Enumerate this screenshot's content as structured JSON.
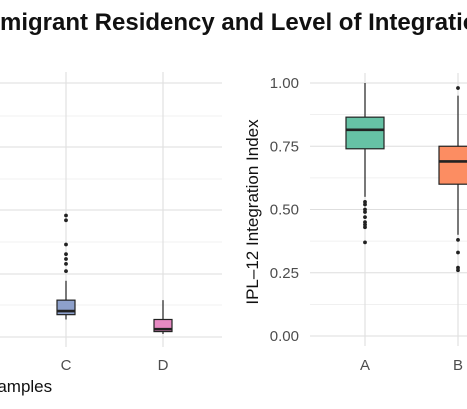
{
  "title": "Immigrant Residency and Level of Integration",
  "colors": {
    "A": "#66c2a5",
    "B": "#fc8d62",
    "C": "#8da0cb",
    "D": "#e78ac3",
    "grid": "#dedede",
    "box_line": "#222222"
  },
  "chart_data": [
    {
      "type": "box",
      "panel": "left",
      "xlabel": "Samples",
      "ylabel": "",
      "categories": [
        "C",
        "D"
      ],
      "boxes": [
        {
          "name": "C",
          "min": 0.06,
          "q1": 0.08,
          "median": 0.095,
          "q3": 0.14,
          "max": 0.22,
          "outliers": [
            0.26,
            0.29,
            0.31,
            0.33,
            0.37,
            0.47,
            0.49
          ]
        },
        {
          "name": "D",
          "min": 0.0,
          "q1": 0.01,
          "median": 0.02,
          "q3": 0.06,
          "max": 0.14,
          "outliers": []
        }
      ]
    },
    {
      "type": "box",
      "panel": "right",
      "xlabel": "",
      "ylabel": "IPL–12 Integration Index",
      "ylim": [
        0,
        1
      ],
      "yticks": [
        "0.00",
        "0.25",
        "0.50",
        "0.75",
        "1.00"
      ],
      "categories": [
        "A",
        "B"
      ],
      "boxes": [
        {
          "name": "A",
          "min": 0.55,
          "q1": 0.74,
          "median": 0.815,
          "q3": 0.865,
          "max": 1.0,
          "outliers": [
            0.37,
            0.43,
            0.44,
            0.45,
            0.47,
            0.49,
            0.5,
            0.52,
            0.53
          ]
        },
        {
          "name": "B",
          "min": 0.4,
          "q1": 0.6,
          "median": 0.69,
          "q3": 0.75,
          "max": 0.95,
          "outliers": [
            0.98,
            0.38,
            0.33,
            0.27,
            0.26
          ]
        }
      ]
    }
  ]
}
